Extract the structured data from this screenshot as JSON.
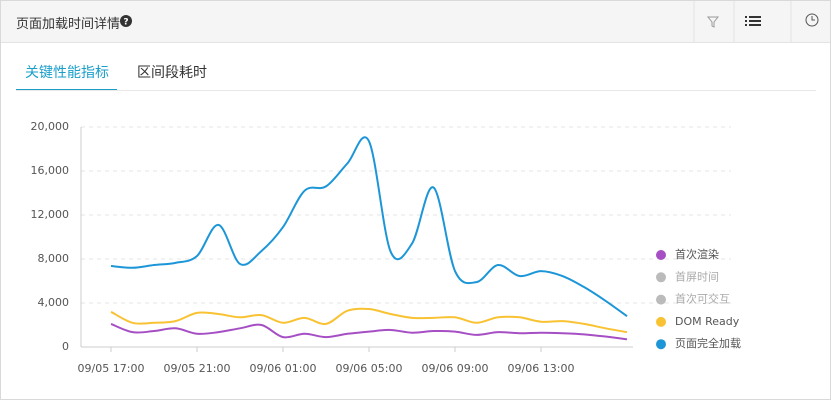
{
  "header": {
    "title": "页面加载时间详情"
  },
  "tabs": [
    "关键性能指标",
    "区间段耗时"
  ],
  "chart_data": {
    "type": "line",
    "categories": [
      "09/05 17:00",
      null,
      null,
      null,
      "09/05 21:00",
      null,
      null,
      null,
      "09/06 01:00",
      null,
      null,
      null,
      "09/06 05:00",
      null,
      null,
      null,
      "09/06 09:00",
      null,
      null,
      null,
      "09/06 13:00",
      null,
      null,
      null,
      null
    ],
    "series": [
      {
        "name": "首次渲染",
        "color": "#a64fc4",
        "values": [
          2100,
          1350,
          1450,
          1700,
          1200,
          1350,
          1700,
          2000,
          900,
          1200,
          900,
          1200,
          1400,
          1550,
          1300,
          1450,
          1400,
          1100,
          1350,
          1250,
          1300,
          1250,
          1150,
          950,
          700
        ]
      },
      {
        "name": "首屏时间",
        "color": "#bbbbbb",
        "visible": false
      },
      {
        "name": "首次可交互",
        "color": "#bbbbbb",
        "visible": false
      },
      {
        "name": "DOM Ready",
        "color": "#f8c232",
        "values": [
          3200,
          2200,
          2200,
          2350,
          3100,
          3000,
          2700,
          2900,
          2200,
          2650,
          2100,
          3300,
          3450,
          3000,
          2650,
          2650,
          2700,
          2200,
          2700,
          2700,
          2300,
          2350,
          2100,
          1700,
          1350
        ]
      },
      {
        "name": "页面完全加载",
        "color": "#1d96d8",
        "values": [
          7360,
          7200,
          7450,
          7650,
          8270,
          11100,
          7550,
          8730,
          10900,
          14200,
          14600,
          16700,
          18700,
          8700,
          9400,
          14500,
          6900,
          5900,
          7450,
          6450,
          6900,
          6450,
          5450,
          4200,
          2800
        ]
      }
    ],
    "ylim": [
      0,
      20000
    ],
    "yticks": [
      0,
      {
        "value": 4000,
        "label": "4,000"
      },
      {
        "value": 8000,
        "label": "8,000"
      },
      {
        "value": 12000,
        "label": "12,000"
      },
      {
        "value": 16000,
        "label": "16,000"
      },
      {
        "value": 20000,
        "label": "20,000"
      }
    ],
    "grid": true
  }
}
